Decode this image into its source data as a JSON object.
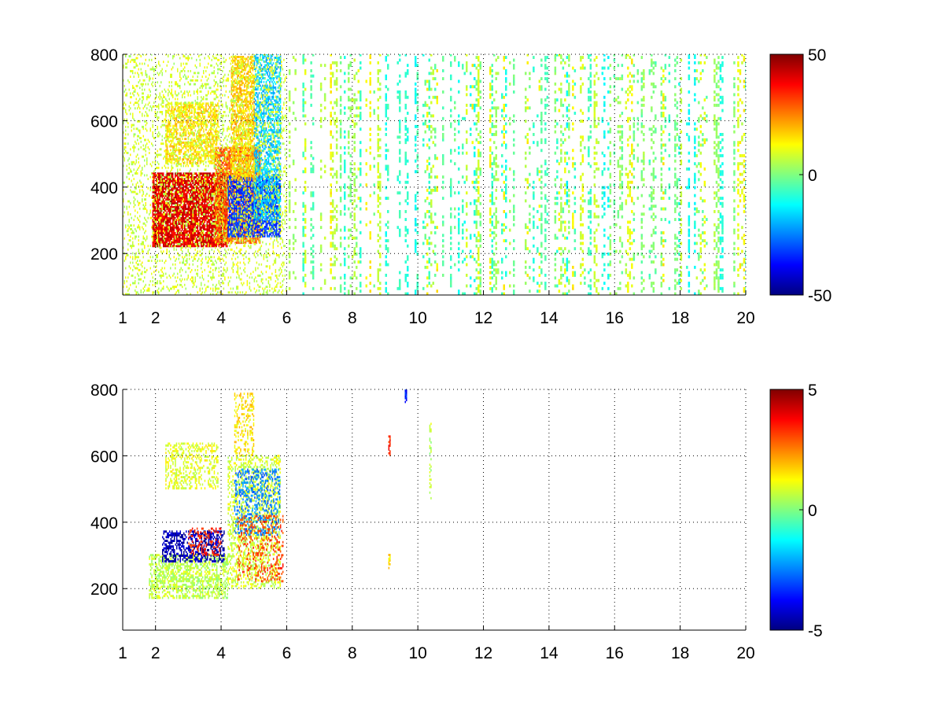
{
  "figure": {
    "background": "#ffffff"
  },
  "chart_data": [
    {
      "type": "heatmap",
      "title": "",
      "xlabel": "",
      "ylabel": "",
      "xlim": [
        1,
        20
      ],
      "ylim": [
        75,
        800
      ],
      "x_ticks": [
        1,
        2,
        4,
        6,
        8,
        10,
        12,
        14,
        16,
        18,
        20
      ],
      "x_tick_labels": [
        "1",
        "2",
        "4",
        "6",
        "8",
        "10",
        "12",
        "14",
        "16",
        "18",
        "20"
      ],
      "y_ticks": [
        200,
        400,
        600,
        800
      ],
      "y_tick_labels": [
        "200",
        "400",
        "600",
        "800"
      ],
      "grid": true,
      "colormap": "jet",
      "colorbar": {
        "min": -50,
        "max": 50,
        "tick_values": [
          50,
          0,
          -50
        ],
        "tick_labels": [
          "50",
          "0",
          "-50"
        ]
      },
      "features": [
        {
          "x0": 1.9,
          "x1": 4.2,
          "y0": 220,
          "y1": 440,
          "value": 40,
          "density": 0.85
        },
        {
          "x0": 3.8,
          "x1": 5.2,
          "y0": 230,
          "y1": 520,
          "value": 28,
          "density": 0.7
        },
        {
          "x0": 4.2,
          "x1": 5.8,
          "y0": 250,
          "y1": 430,
          "value": -32,
          "density": 0.7
        },
        {
          "x0": 5.0,
          "x1": 5.8,
          "y0": 300,
          "y1": 800,
          "value": -18,
          "density": 0.55
        },
        {
          "x0": 4.3,
          "x1": 5.0,
          "y0": 420,
          "y1": 790,
          "value": 18,
          "density": 0.6
        },
        {
          "x0": 2.3,
          "x1": 3.9,
          "y0": 470,
          "y1": 650,
          "value": 16,
          "density": 0.55
        },
        {
          "x0": 1.0,
          "x1": 6.0,
          "y0": 75,
          "y1": 800,
          "value": 8,
          "density": 0.18
        }
      ],
      "background_noise": {
        "x_min": 6,
        "x_max": 20,
        "value_min": -12,
        "value_max": 14,
        "density": 0.22
      }
    },
    {
      "type": "heatmap",
      "title": "",
      "xlabel": "",
      "ylabel": "",
      "xlim": [
        1,
        20
      ],
      "ylim": [
        75,
        800
      ],
      "x_ticks": [
        1,
        2,
        4,
        6,
        8,
        10,
        12,
        14,
        16,
        18,
        20
      ],
      "x_tick_labels": [
        "1",
        "2",
        "4",
        "6",
        "8",
        "10",
        "12",
        "14",
        "16",
        "18",
        "20"
      ],
      "y_ticks": [
        200,
        400,
        600,
        800
      ],
      "y_tick_labels": [
        "200",
        "400",
        "600",
        "800"
      ],
      "grid": true,
      "colormap": "jet",
      "colorbar": {
        "min": -5,
        "max": 5,
        "tick_values": [
          5,
          0,
          -5
        ],
        "tick_labels": [
          "5",
          "0",
          "-5"
        ]
      },
      "features": [
        {
          "x0": 1.8,
          "x1": 4.2,
          "y0": 170,
          "y1": 300,
          "value": 0.6,
          "density": 0.5
        },
        {
          "x0": 2.2,
          "x1": 4.1,
          "y0": 280,
          "y1": 370,
          "value": -4.5,
          "density": 0.5
        },
        {
          "x0": 3.0,
          "x1": 4.0,
          "y0": 300,
          "y1": 380,
          "value": 3.5,
          "density": 0.25
        },
        {
          "x0": 4.2,
          "x1": 5.8,
          "y0": 200,
          "y1": 600,
          "value": 0.8,
          "density": 0.35
        },
        {
          "x0": 4.4,
          "x1": 5.8,
          "y0": 360,
          "y1": 560,
          "value": -2.5,
          "density": 0.3
        },
        {
          "x0": 4.5,
          "x1": 5.9,
          "y0": 220,
          "y1": 420,
          "value": 3.0,
          "density": 0.2
        },
        {
          "x0": 2.3,
          "x1": 3.9,
          "y0": 500,
          "y1": 640,
          "value": 1.0,
          "density": 0.35
        },
        {
          "x0": 4.4,
          "x1": 5.0,
          "y0": 600,
          "y1": 790,
          "value": 1.5,
          "density": 0.3
        },
        {
          "x0": 9.1,
          "x1": 9.15,
          "y0": 600,
          "y1": 660,
          "value": 3.5,
          "density": 0.8
        },
        {
          "x0": 9.1,
          "x1": 9.15,
          "y0": 260,
          "y1": 300,
          "value": 1.5,
          "density": 0.7
        },
        {
          "x0": 9.6,
          "x1": 9.65,
          "y0": 760,
          "y1": 800,
          "value": -3.5,
          "density": 0.8
        },
        {
          "x0": 10.35,
          "x1": 10.4,
          "y0": 470,
          "y1": 710,
          "value": 0.6,
          "density": 0.4
        }
      ],
      "background_noise": null
    }
  ]
}
